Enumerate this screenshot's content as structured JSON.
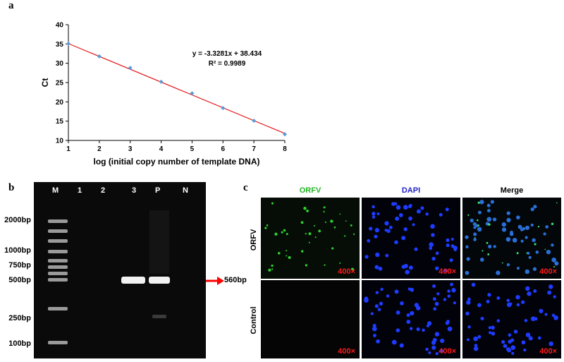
{
  "panel_a": {
    "letter": "a",
    "equation": "y = -3.3281x + 38.434",
    "r_squared": "R² = 0.9989"
  },
  "chart_data": {
    "type": "scatter",
    "xlabel": "log (initial copy number of template DNA)",
    "ylabel": "Ct",
    "xlim": [
      1,
      8
    ],
    "ylim": [
      10,
      40
    ],
    "x_ticks": [
      "1",
      "2",
      "3",
      "4",
      "5",
      "6",
      "7",
      "8"
    ],
    "y_ticks": [
      "10",
      "15",
      "20",
      "25",
      "30",
      "35",
      "40"
    ],
    "series": [
      {
        "x": [
          1,
          2,
          3,
          4,
          5,
          6,
          7,
          8
        ],
        "y": [
          35.1,
          31.8,
          28.8,
          25.2,
          22.2,
          18.4,
          15.1,
          11.6
        ]
      }
    ],
    "fit": {
      "slope": -3.3281,
      "intercept": 38.434,
      "color": "#e31a1c"
    },
    "point_color": "#5b9bd5",
    "grid": false
  },
  "panel_b": {
    "letter": "b",
    "lanes": [
      "M",
      "1",
      "2",
      "3",
      "P",
      "N"
    ],
    "ladder": [
      "2000bp",
      "1000bp",
      "750bp",
      "500bp",
      "250bp",
      "100bp"
    ],
    "band_label": "560bp",
    "arrow_color": "#ff0000"
  },
  "panel_c": {
    "letter": "c",
    "columns": [
      {
        "label": "ORFV",
        "color": "#22b422"
      },
      {
        "label": "DAPI",
        "color": "#2222cc"
      },
      {
        "label": "Merge",
        "color": "#000000"
      }
    ],
    "rows": [
      "ORFV",
      "Control"
    ],
    "magnification": "400×"
  }
}
